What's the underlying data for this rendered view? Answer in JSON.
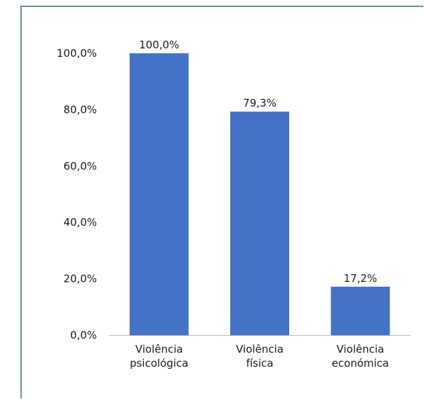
{
  "chart_data": {
    "type": "bar",
    "categories": [
      [
        "Violência",
        "psicológica"
      ],
      [
        "Violência",
        "física"
      ],
      [
        "Violência",
        "económica"
      ]
    ],
    "values": [
      100.0,
      79.3,
      17.2
    ],
    "data_labels": [
      "100,0%",
      "79,3%",
      "17,2%"
    ],
    "ylim": [
      0,
      100
    ],
    "yticks": [
      0,
      20,
      40,
      60,
      80,
      100
    ],
    "ytick_labels": [
      "0,0%",
      "20,0%",
      "40,0%",
      "60,0%",
      "80,0%",
      "100,0%"
    ],
    "grid": false,
    "bar_color": "#4472c4",
    "axis_color": "#bfbfbf"
  }
}
